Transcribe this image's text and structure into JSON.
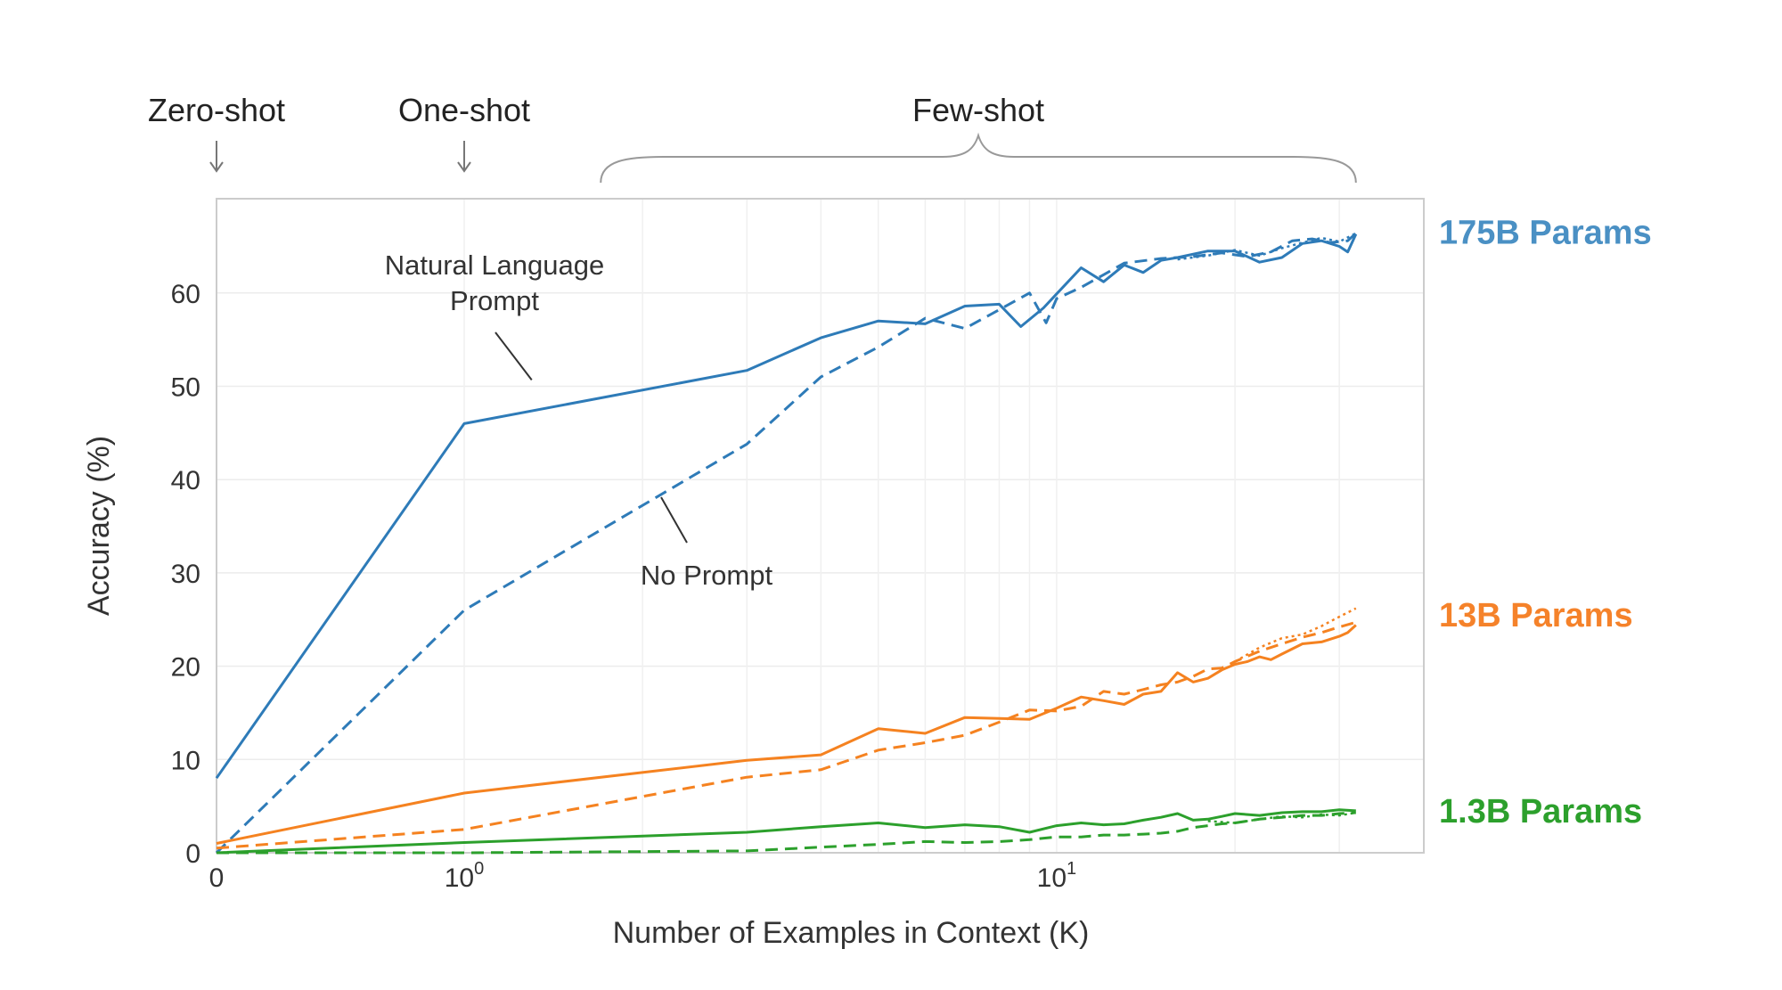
{
  "chart_data": {
    "type": "line",
    "xlabel": "Number of Examples in Context  (K)",
    "ylabel": "Accuracy (%)",
    "xscale": "symlog",
    "xlim": [
      0,
      32
    ],
    "ylim": [
      0,
      70
    ],
    "y_ticks": [
      "0",
      "10",
      "20",
      "30",
      "40",
      "50",
      "60"
    ],
    "x_ticks": [
      {
        "value": 0,
        "base": "0",
        "exp": ""
      },
      {
        "value": 1,
        "base": "10",
        "exp": "0"
      },
      {
        "value": 10,
        "base": "10",
        "exp": "1"
      }
    ],
    "grid": true,
    "regimes": [
      {
        "label": "Zero-shot",
        "marker": "arrow",
        "at": 0
      },
      {
        "label": "One-shot",
        "marker": "arrow",
        "at": 1
      },
      {
        "label": "Few-shot",
        "marker": "brace",
        "from": 1.7,
        "to": 32
      }
    ],
    "annotations": [
      {
        "text": "Natural Language\nPrompt",
        "points_to": [
          1.3,
          50.3
        ]
      },
      {
        "text": "No Prompt",
        "points_to": [
          2.0,
          37.0
        ]
      }
    ],
    "model_labels": [
      {
        "text": "175B Params",
        "color": "#4a90c4",
        "y": 66.5
      },
      {
        "text": "13B Params",
        "color": "#f5822a",
        "y": 25.5
      },
      {
        "text": "1.3B Params",
        "color": "#2ca02c",
        "y": 4.5
      }
    ],
    "series": [
      {
        "model": "175B Params",
        "prompt": "Natural Language Prompt",
        "style": "solid",
        "color": "#2e7bb8",
        "points": [
          [
            0,
            8
          ],
          [
            1,
            46
          ],
          [
            3,
            51.7
          ],
          [
            4,
            55.2
          ],
          [
            5,
            57
          ],
          [
            6,
            56.7
          ],
          [
            7,
            58.6
          ],
          [
            8,
            58.8
          ],
          [
            8.7,
            56.4
          ],
          [
            9.5,
            58.4
          ],
          [
            10,
            59.9
          ],
          [
            11,
            62.7
          ],
          [
            12,
            61.2
          ],
          [
            13,
            63
          ],
          [
            14,
            62.2
          ],
          [
            15,
            63.5
          ],
          [
            16,
            63.8
          ],
          [
            18,
            64.5
          ],
          [
            20,
            64.5
          ],
          [
            22,
            63.3
          ],
          [
            24,
            63.8
          ],
          [
            26,
            65.3
          ],
          [
            28,
            65.6
          ],
          [
            30,
            65
          ],
          [
            31,
            64.4
          ],
          [
            32,
            66.3
          ]
        ]
      },
      {
        "model": "175B Params",
        "prompt": "No Prompt",
        "style": "dashed",
        "color": "#2e7bb8",
        "points": [
          [
            0,
            0
          ],
          [
            1,
            26
          ],
          [
            3,
            43.8
          ],
          [
            4,
            51
          ],
          [
            5,
            54.2
          ],
          [
            6,
            57.3
          ],
          [
            7,
            56.2
          ],
          [
            8,
            58.2
          ],
          [
            9,
            60
          ],
          [
            9.6,
            56.8
          ],
          [
            10,
            59.4
          ],
          [
            11,
            60.6
          ],
          [
            13,
            63.2
          ],
          [
            15,
            63.7
          ],
          [
            17,
            63.9
          ],
          [
            19,
            64.3
          ],
          [
            21,
            63.9
          ],
          [
            23,
            64.4
          ],
          [
            25,
            65.6
          ],
          [
            27,
            65.8
          ],
          [
            29,
            65.4
          ],
          [
            31,
            65.6
          ],
          [
            32,
            66.4
          ]
        ]
      },
      {
        "model": "175B Params",
        "prompt": "No Prompt",
        "style": "dotted",
        "color": "#2e7bb8",
        "points": [
          [
            16,
            63.6
          ],
          [
            18,
            64
          ],
          [
            20,
            64.6
          ],
          [
            22,
            64
          ],
          [
            24,
            64.8
          ],
          [
            26,
            65.4
          ],
          [
            28,
            65.9
          ],
          [
            30,
            65.5
          ],
          [
            32,
            66.4
          ]
        ]
      },
      {
        "model": "13B Params",
        "prompt": "Natural Language Prompt",
        "style": "solid",
        "color": "#f58220",
        "points": [
          [
            0,
            1
          ],
          [
            1,
            6.4
          ],
          [
            3,
            9.9
          ],
          [
            4,
            10.5
          ],
          [
            5,
            13.3
          ],
          [
            6,
            12.8
          ],
          [
            7,
            14.5
          ],
          [
            8,
            14.4
          ],
          [
            9,
            14.3
          ],
          [
            10,
            15.5
          ],
          [
            11,
            16.7
          ],
          [
            12,
            16.3
          ],
          [
            13,
            15.9
          ],
          [
            14,
            17
          ],
          [
            15,
            17.3
          ],
          [
            16,
            19.3
          ],
          [
            17,
            18.3
          ],
          [
            18,
            18.7
          ],
          [
            19,
            19.6
          ],
          [
            20,
            20.2
          ],
          [
            21,
            20.5
          ],
          [
            22,
            21
          ],
          [
            23,
            20.7
          ],
          [
            24,
            21.3
          ],
          [
            26,
            22.4
          ],
          [
            28,
            22.6
          ],
          [
            30,
            23.2
          ],
          [
            31,
            23.6
          ],
          [
            32,
            24.4
          ]
        ]
      },
      {
        "model": "13B Params",
        "prompt": "No Prompt",
        "style": "dashed",
        "color": "#f58220",
        "points": [
          [
            0,
            0.5
          ],
          [
            1,
            2.5
          ],
          [
            3,
            8.1
          ],
          [
            4,
            8.9
          ],
          [
            5,
            11
          ],
          [
            6,
            11.8
          ],
          [
            7,
            12.6
          ],
          [
            8,
            14
          ],
          [
            9,
            15.3
          ],
          [
            10,
            15.2
          ],
          [
            11,
            15.7
          ],
          [
            12,
            17.3
          ],
          [
            13,
            17
          ],
          [
            14,
            17.5
          ],
          [
            15,
            18
          ],
          [
            16,
            18.3
          ],
          [
            17,
            18.9
          ],
          [
            18,
            19.7
          ],
          [
            19,
            19.8
          ],
          [
            20,
            20.5
          ],
          [
            22,
            21.6
          ],
          [
            24,
            22.4
          ],
          [
            26,
            23.1
          ],
          [
            28,
            23.6
          ],
          [
            30,
            24.2
          ],
          [
            32,
            24.7
          ]
        ]
      },
      {
        "model": "13B Params",
        "prompt": "No Prompt",
        "style": "dotted",
        "color": "#f58220",
        "points": [
          [
            20,
            20.5
          ],
          [
            22,
            22
          ],
          [
            24,
            23
          ],
          [
            26,
            23.4
          ],
          [
            28,
            24.3
          ],
          [
            30,
            25.3
          ],
          [
            32,
            26.2
          ]
        ]
      },
      {
        "model": "1.3B Params",
        "prompt": "Natural Language Prompt",
        "style": "solid",
        "color": "#2ca02c",
        "points": [
          [
            0,
            0
          ],
          [
            1,
            1.1
          ],
          [
            3,
            2.2
          ],
          [
            4,
            2.8
          ],
          [
            5,
            3.2
          ],
          [
            6,
            2.7
          ],
          [
            7,
            3
          ],
          [
            8,
            2.8
          ],
          [
            9,
            2.2
          ],
          [
            10,
            2.9
          ],
          [
            11,
            3.2
          ],
          [
            12,
            3
          ],
          [
            13,
            3.1
          ],
          [
            14,
            3.5
          ],
          [
            15,
            3.8
          ],
          [
            16,
            4.2
          ],
          [
            17,
            3.5
          ],
          [
            18,
            3.6
          ],
          [
            19,
            3.9
          ],
          [
            20,
            4.2
          ],
          [
            22,
            4
          ],
          [
            24,
            4.3
          ],
          [
            26,
            4.4
          ],
          [
            28,
            4.4
          ],
          [
            30,
            4.6
          ],
          [
            32,
            4.5
          ]
        ]
      },
      {
        "model": "1.3B Params",
        "prompt": "No Prompt",
        "style": "dashed",
        "color": "#2ca02c",
        "points": [
          [
            0,
            0
          ],
          [
            1,
            0
          ],
          [
            3,
            0.2
          ],
          [
            4,
            0.6
          ],
          [
            5,
            0.9
          ],
          [
            6,
            1.2
          ],
          [
            7,
            1.1
          ],
          [
            8,
            1.2
          ],
          [
            9,
            1.4
          ],
          [
            10,
            1.7
          ],
          [
            11,
            1.7
          ],
          [
            12,
            1.9
          ],
          [
            13,
            1.9
          ],
          [
            14,
            2
          ],
          [
            15,
            2.1
          ],
          [
            16,
            2.3
          ],
          [
            17,
            2.7
          ],
          [
            18,
            2.9
          ],
          [
            19,
            3.1
          ],
          [
            20,
            3.2
          ],
          [
            22,
            3.6
          ],
          [
            24,
            3.8
          ],
          [
            26,
            4
          ],
          [
            28,
            4
          ],
          [
            30,
            4.2
          ],
          [
            32,
            4.3
          ]
        ]
      },
      {
        "model": "1.3B Params",
        "prompt": "No Prompt",
        "style": "dotted",
        "color": "#2ca02c",
        "points": [
          [
            18,
            3.4
          ],
          [
            20,
            3.2
          ],
          [
            22,
            3.6
          ],
          [
            24,
            3.9
          ],
          [
            26,
            3.8
          ],
          [
            28,
            4.1
          ],
          [
            30,
            4
          ],
          [
            32,
            4.3
          ]
        ]
      }
    ]
  }
}
